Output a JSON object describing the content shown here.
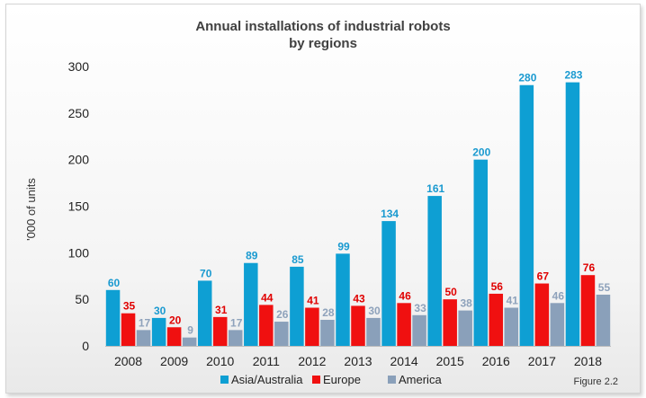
{
  "chart_data": {
    "type": "bar",
    "title_lines": [
      "Annual installations  of industrial robots",
      "by regions"
    ],
    "ylabel": "'000 of units",
    "xlabel": "",
    "ylim": [
      0,
      300
    ],
    "yticks": [
      0,
      50,
      100,
      150,
      200,
      250,
      300
    ],
    "categories": [
      "2008",
      "2009",
      "2010",
      "2011",
      "2012",
      "2013",
      "2014",
      "2015",
      "2016",
      "2017",
      "2018"
    ],
    "series": [
      {
        "name": "Asia/Australia",
        "color": "#0e9fd3",
        "label_color": "#1a9ad0",
        "values": [
          60,
          30,
          70,
          89,
          85,
          99,
          134,
          161,
          200,
          280,
          283
        ]
      },
      {
        "name": "Europe",
        "color": "#f01010",
        "label_color": "#e00000",
        "values": [
          35,
          20,
          31,
          44,
          41,
          43,
          46,
          50,
          56,
          67,
          76
        ]
      },
      {
        "name": "America",
        "color": "#8aa0ba",
        "label_color": "#8ea2bb",
        "values": [
          17,
          9,
          17,
          26,
          28,
          30,
          33,
          38,
          41,
          46,
          55
        ]
      }
    ],
    "legend_position": "bottom",
    "grid": false
  },
  "figure_note": "Figure 2.2"
}
